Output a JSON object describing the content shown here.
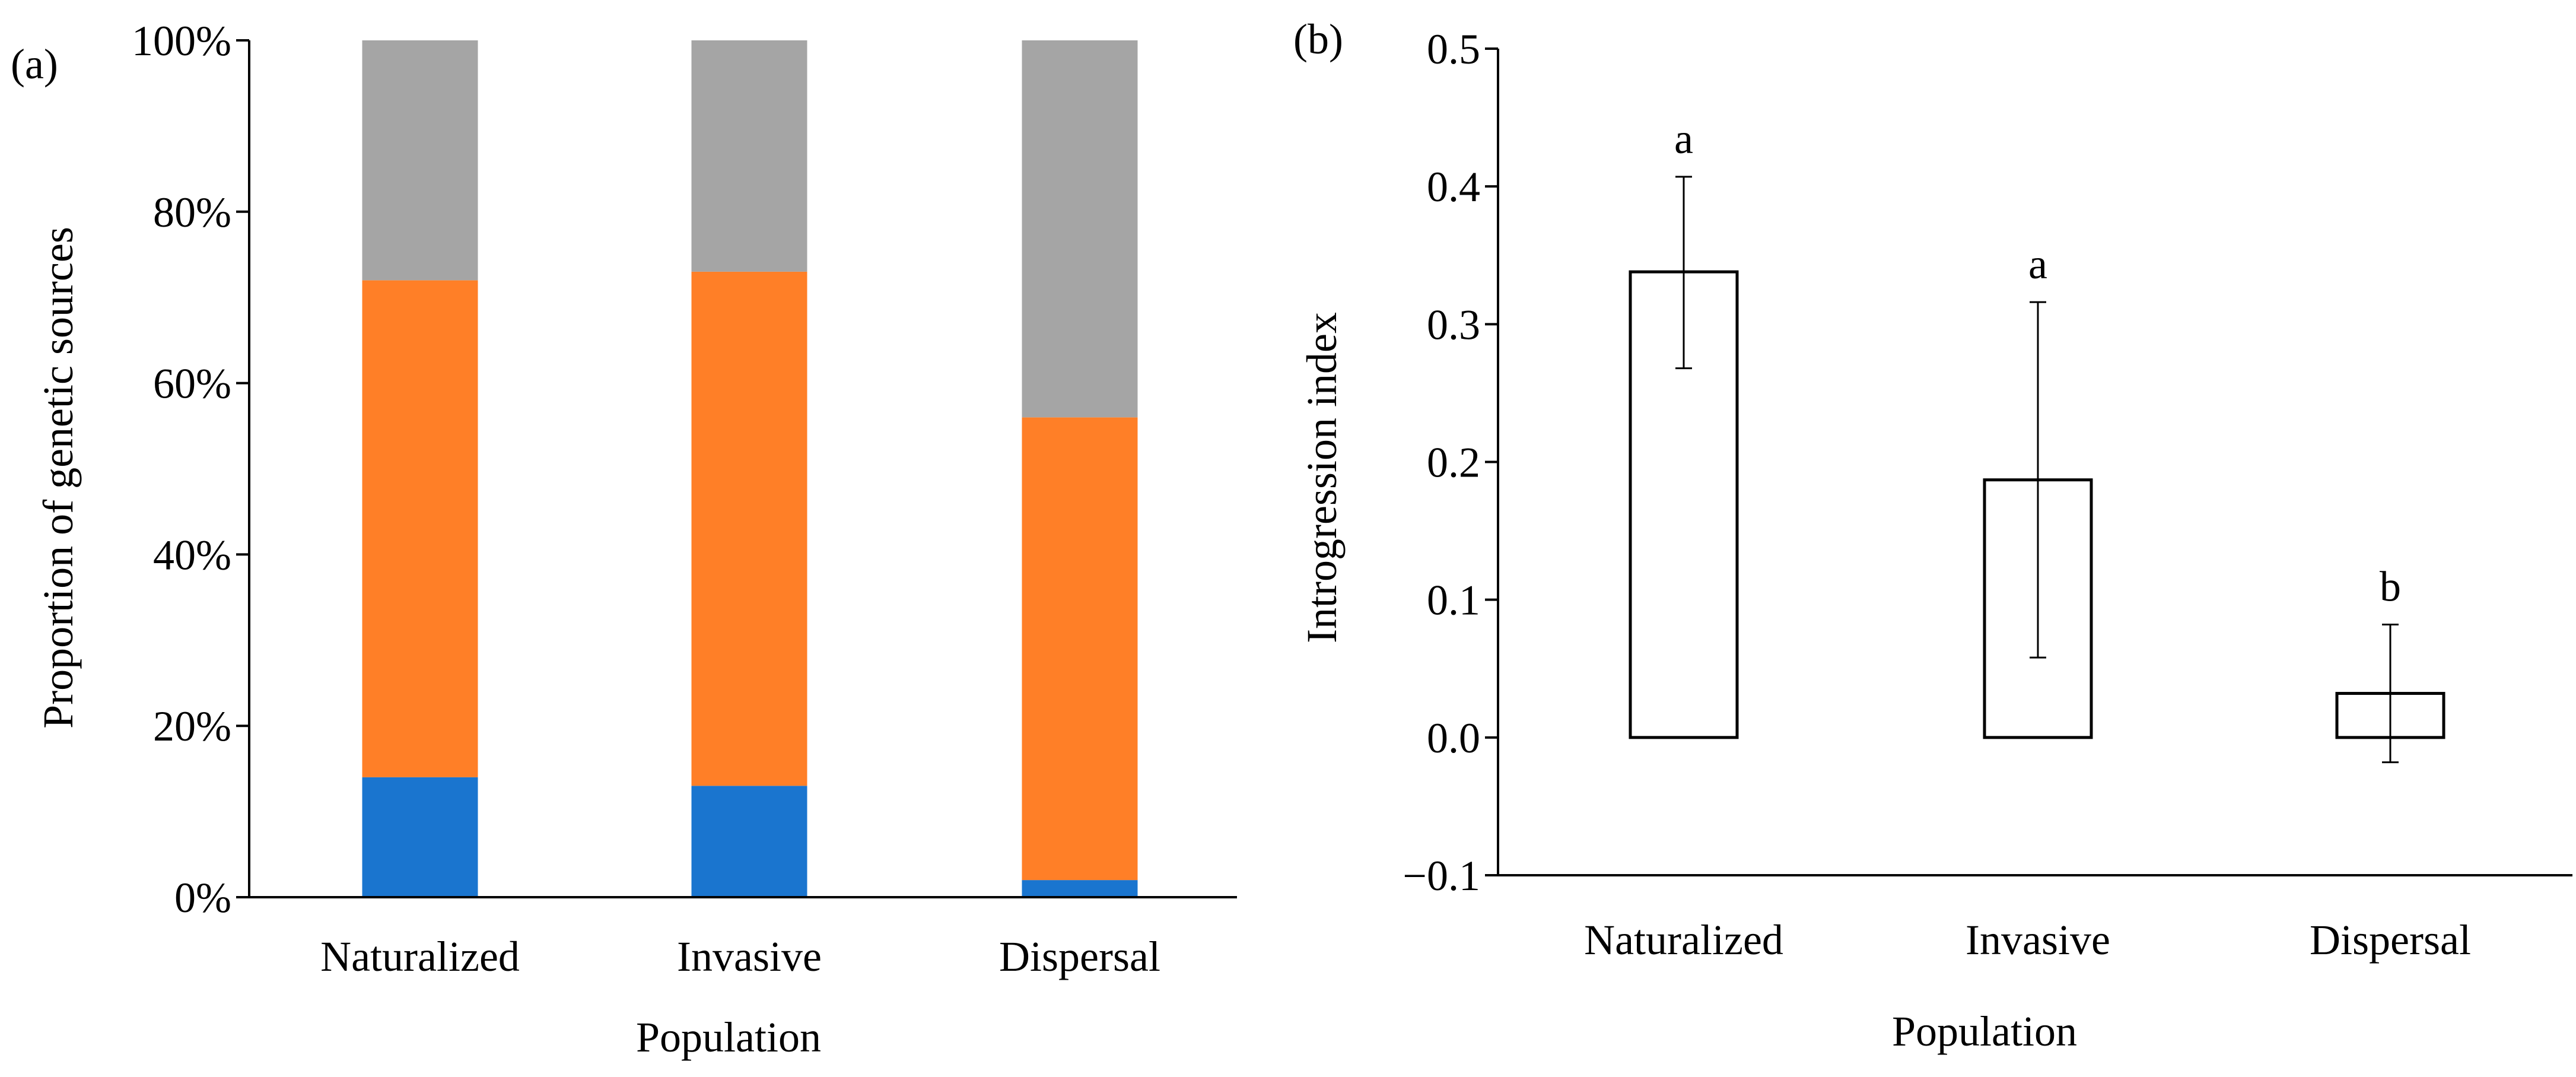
{
  "chart_data": [
    {
      "panel": "(a)",
      "type": "bar",
      "stacked": true,
      "xlabel": "Population",
      "ylabel": "Proportion of genetic sources",
      "categories": [
        "Naturalized",
        "Invasive",
        "Dispersal"
      ],
      "ylim": [
        0,
        100
      ],
      "yticks": [
        "0%",
        "20%",
        "40%",
        "60%",
        "80%",
        "100%"
      ],
      "series": [
        {
          "name": "blue",
          "color": "#1a75cf",
          "values": [
            14,
            13,
            2
          ]
        },
        {
          "name": "orange",
          "color": "#ff7f27",
          "values": [
            58,
            60,
            54
          ]
        },
        {
          "name": "gray",
          "color": "#a5a5a5",
          "values": [
            28,
            27,
            44
          ]
        }
      ]
    },
    {
      "panel": "(b)",
      "type": "bar",
      "xlabel": "Population",
      "ylabel": "Introgression index",
      "categories": [
        "Naturalized",
        "Invasive",
        "Dispersal"
      ],
      "values": [
        0.338,
        0.187,
        0.032
      ],
      "error_low": [
        0.268,
        0.058,
        -0.018
      ],
      "error_high": [
        0.407,
        0.316,
        0.082
      ],
      "significance": [
        "a",
        "a",
        "b"
      ],
      "ylim": [
        -0.1,
        0.5
      ],
      "yticks": [
        "−0.1",
        "0.0",
        "0.1",
        "0.2",
        "0.3",
        "0.4",
        "0.5"
      ]
    }
  ]
}
